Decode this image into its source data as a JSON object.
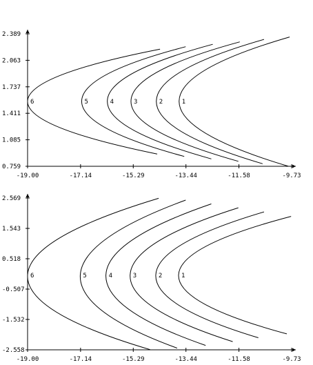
{
  "chart_data": [
    {
      "type": "line",
      "title": "",
      "xlabel": "",
      "ylabel": "",
      "xlim": [
        -19.0,
        -9.73
      ],
      "ylim": [
        0.759,
        2.389
      ],
      "x_ticks": [
        "-19.00",
        "-17.14",
        "-15.29",
        "-13.44",
        "-11.58",
        "-9.73"
      ],
      "y_ticks": [
        "0.759",
        "1.085",
        "1.411",
        "1.737",
        "2.063",
        "2.389"
      ],
      "grid": false,
      "legend": "none",
      "series": [
        {
          "label": "1",
          "vertex": [
            -13.68,
            1.56
          ],
          "upper_end": [
            -9.8,
            2.35
          ],
          "lower_end": [
            -9.85,
            0.76
          ]
        },
        {
          "label": "2",
          "vertex": [
            -14.48,
            1.56
          ],
          "upper_end": [
            -10.7,
            2.32
          ],
          "lower_end": [
            -10.75,
            0.79
          ]
        },
        {
          "label": "3",
          "vertex": [
            -15.37,
            1.56
          ],
          "upper_end": [
            -11.55,
            2.29
          ],
          "lower_end": [
            -11.6,
            0.82
          ]
        },
        {
          "label": "4",
          "vertex": [
            -16.2,
            1.56
          ],
          "upper_end": [
            -12.5,
            2.26
          ],
          "lower_end": [
            -12.55,
            0.85
          ]
        },
        {
          "label": "5",
          "vertex": [
            -17.1,
            1.56
          ],
          "upper_end": [
            -13.45,
            2.23
          ],
          "lower_end": [
            -13.5,
            0.88
          ]
        },
        {
          "label": "6",
          "vertex": [
            -19.0,
            1.56
          ],
          "upper_end": [
            -14.35,
            2.2
          ],
          "lower_end": [
            -14.45,
            0.91
          ]
        }
      ]
    },
    {
      "type": "line",
      "title": "",
      "xlabel": "",
      "ylabel": "",
      "xlim": [
        -19.0,
        -9.73
      ],
      "ylim": [
        -2.558,
        2.569
      ],
      "x_ticks": [
        "-19.00",
        "-17.14",
        "-15.29",
        "-13.44",
        "-11.58",
        "-9.73"
      ],
      "y_ticks": [
        "-2.558",
        "-1.532",
        "-0.507",
        "0.518",
        "1.543",
        "2.569"
      ],
      "grid": false,
      "legend": "none",
      "series": [
        {
          "label": "1",
          "vertex": [
            -13.7,
            -0.03
          ],
          "upper_end": [
            -9.75,
            1.95
          ],
          "lower_end": [
            -9.9,
            -2.02
          ]
        },
        {
          "label": "2",
          "vertex": [
            -14.5,
            -0.03
          ],
          "upper_end": [
            -10.7,
            2.1
          ],
          "lower_end": [
            -10.9,
            -2.15
          ]
        },
        {
          "label": "3",
          "vertex": [
            -15.4,
            -0.03
          ],
          "upper_end": [
            -11.6,
            2.24
          ],
          "lower_end": [
            -11.8,
            -2.28
          ]
        },
        {
          "label": "4",
          "vertex": [
            -16.25,
            -0.03
          ],
          "upper_end": [
            -12.55,
            2.37
          ],
          "lower_end": [
            -12.75,
            -2.41
          ]
        },
        {
          "label": "5",
          "vertex": [
            -17.15,
            -0.03
          ],
          "upper_end": [
            -13.45,
            2.5
          ],
          "lower_end": [
            -13.75,
            -2.5
          ]
        },
        {
          "label": "6",
          "vertex": [
            -19.0,
            -0.03
          ],
          "upper_end": [
            -14.4,
            2.56
          ],
          "lower_end": [
            -14.7,
            -2.55
          ]
        }
      ]
    }
  ]
}
